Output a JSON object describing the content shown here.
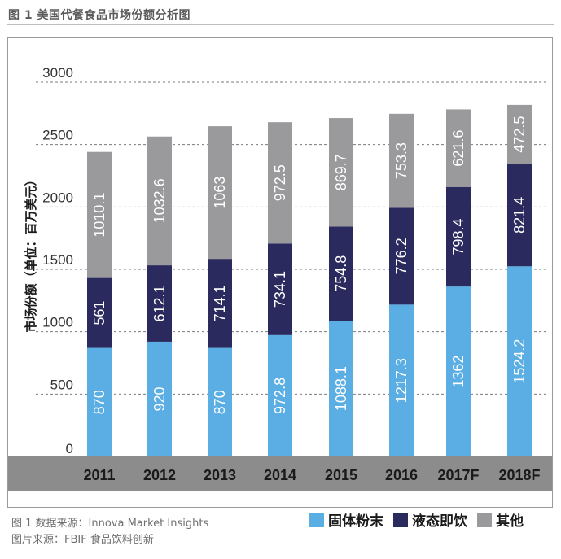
{
  "header": {
    "title": "图 1  美国代餐食品市场份额分析图"
  },
  "footer": {
    "source_line1": "图 1 数据来源：Innova Market Insights",
    "source_line2": "图片来源：FBIF 食品饮料创新"
  },
  "colors": {
    "solid_powder": "#5aaee3",
    "liquid_rtd": "#2a2a5e",
    "other": "#9a9a9c",
    "axis_band": "#8c8c8c"
  },
  "chart_data": {
    "type": "bar",
    "stacked": true,
    "title": "美国代餐食品市场份额分析图",
    "ylabel": "市场份额（单位：百万美元）",
    "xlabel": "",
    "ylim": [
      0,
      3000
    ],
    "yticks": [
      0,
      500,
      1000,
      1500,
      2000,
      2500,
      3000
    ],
    "grid": true,
    "legend_position": "bottom-right",
    "categories": [
      "2011",
      "2012",
      "2013",
      "2014",
      "2015",
      "2016",
      "2017F",
      "2018F"
    ],
    "series": [
      {
        "name": "固体粉末",
        "color": "#5aaee3",
        "values": [
          870,
          920,
          870,
          972.8,
          1088.1,
          1217.3,
          1362,
          1524.2
        ],
        "labels": [
          "870",
          "920",
          "870",
          "972.8",
          "1088.1",
          "1217.3",
          "1362",
          "1524.2"
        ]
      },
      {
        "name": "液态即饮",
        "color": "#2a2a5e",
        "values": [
          561,
          612.1,
          714.1,
          734.1,
          754.8,
          776.2,
          798.4,
          821.4
        ],
        "labels": [
          "561",
          "612.1",
          "714.1",
          "734.1",
          "754.8",
          "776.2",
          "798.4",
          "821.4"
        ]
      },
      {
        "name": "其他",
        "color": "#9a9a9c",
        "values": [
          1010.1,
          1032.6,
          1063,
          972.5,
          869.7,
          753.3,
          621.6,
          472.5
        ],
        "labels": [
          "1010.1",
          "1032.6",
          "1063",
          "972.5",
          "869.7",
          "753.3",
          "621.6",
          "472.5"
        ]
      }
    ]
  }
}
